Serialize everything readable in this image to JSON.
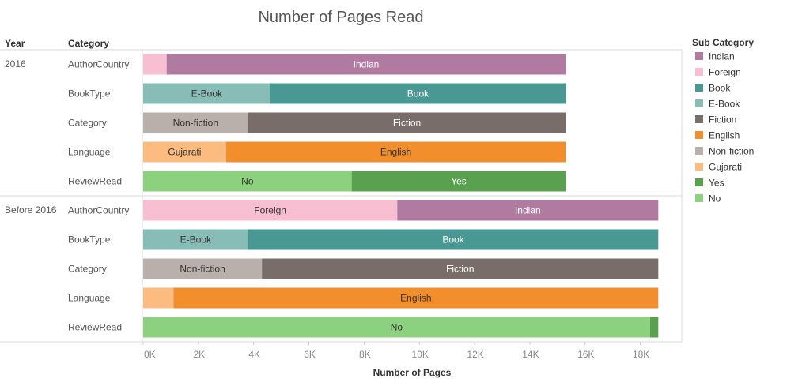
{
  "chart_data": {
    "type": "bar",
    "orientation": "horizontal",
    "stacked": true,
    "title": "Number of Pages Read",
    "xlabel": "Number of Pages",
    "row_headers": [
      "Year",
      "Category"
    ],
    "legend_title": "Sub Category",
    "legend_position": "right",
    "xlim": [
      0,
      19500
    ],
    "x_ticks": [
      0,
      2000,
      4000,
      6000,
      8000,
      10000,
      12000,
      14000,
      16000,
      18000
    ],
    "x_tick_labels": [
      "0K",
      "2K",
      "4K",
      "6K",
      "8K",
      "10K",
      "12K",
      "14K",
      "16K",
      "18K"
    ],
    "colors": {
      "Indian": "#b07aa1",
      "Foreign": "#f8bfd2",
      "Book": "#4a9893",
      "E-Book": "#88bdb7",
      "Fiction": "#786d69",
      "English": "#f28e2b",
      "Non-fiction": "#bab0ab",
      "Gujarati": "#fcbc7f",
      "Yes": "#59a14f",
      "No": "#8cd17d"
    },
    "legend": [
      "Indian",
      "Foreign",
      "Book",
      "E-Book",
      "Fiction",
      "English",
      "Non-fiction",
      "Gujarati",
      "Yes",
      "No"
    ],
    "groups": [
      {
        "year": "2016",
        "rows": [
          {
            "category": "AuthorCountry",
            "segments": [
              {
                "sub": "Foreign",
                "value": 850,
                "label": ""
              },
              {
                "sub": "Indian",
                "value": 14450,
                "label": "Indian"
              }
            ]
          },
          {
            "category": "BookType",
            "segments": [
              {
                "sub": "E-Book",
                "value": 4600,
                "label": "E-Book"
              },
              {
                "sub": "Book",
                "value": 10700,
                "label": "Book"
              }
            ]
          },
          {
            "category": "Category",
            "segments": [
              {
                "sub": "Non-fiction",
                "value": 3800,
                "label": "Non-fiction"
              },
              {
                "sub": "Fiction",
                "value": 11500,
                "label": "Fiction"
              }
            ]
          },
          {
            "category": "Language",
            "segments": [
              {
                "sub": "Gujarati",
                "value": 3000,
                "label": "Gujarati"
              },
              {
                "sub": "English",
                "value": 12300,
                "label": "English"
              }
            ]
          },
          {
            "category": "ReviewRead",
            "segments": [
              {
                "sub": "No",
                "value": 7550,
                "label": "No"
              },
              {
                "sub": "Yes",
                "value": 7750,
                "label": "Yes"
              }
            ]
          }
        ]
      },
      {
        "year": "Before 2016",
        "rows": [
          {
            "category": "AuthorCountry",
            "segments": [
              {
                "sub": "Foreign",
                "value": 9200,
                "label": "Foreign"
              },
              {
                "sub": "Indian",
                "value": 9450,
                "label": "Indian"
              }
            ]
          },
          {
            "category": "BookType",
            "segments": [
              {
                "sub": "E-Book",
                "value": 3800,
                "label": "E-Book"
              },
              {
                "sub": "Book",
                "value": 14850,
                "label": "Book"
              }
            ]
          },
          {
            "category": "Category",
            "segments": [
              {
                "sub": "Non-fiction",
                "value": 4300,
                "label": "Non-fiction"
              },
              {
                "sub": "Fiction",
                "value": 14350,
                "label": "Fiction"
              }
            ]
          },
          {
            "category": "Language",
            "segments": [
              {
                "sub": "Gujarati",
                "value": 1100,
                "label": ""
              },
              {
                "sub": "English",
                "value": 17550,
                "label": "English"
              }
            ]
          },
          {
            "category": "ReviewRead",
            "segments": [
              {
                "sub": "No",
                "value": 18350,
                "label": "No"
              },
              {
                "sub": "Yes",
                "value": 300,
                "label": ""
              }
            ]
          }
        ]
      }
    ]
  }
}
